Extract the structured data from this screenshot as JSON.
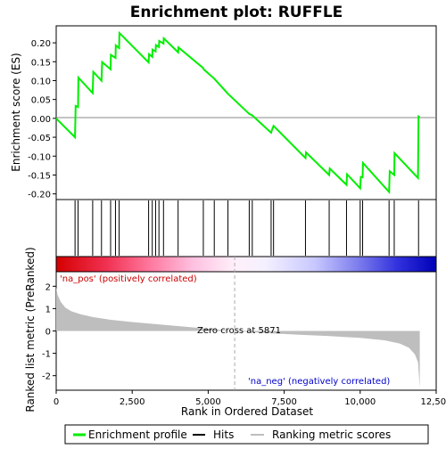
{
  "chart_data": {
    "type": "line",
    "title": "Enrichment plot: RUFFLE",
    "x_axis": {
      "label": "Rank in Ordered Dataset",
      "range": [
        0,
        12500
      ],
      "ticks": [
        0,
        2500,
        5000,
        7500,
        10000,
        12500
      ],
      "tick_labels": [
        "0",
        "2,500",
        "5,000",
        "7,500",
        "10,000",
        "12,500"
      ]
    },
    "es_panel": {
      "ylabel": "Enrichment score (ES)",
      "ylim": [
        -0.215,
        0.245
      ],
      "ticks": [
        -0.2,
        -0.15,
        -0.1,
        -0.05,
        0.0,
        0.05,
        0.1,
        0.15,
        0.2
      ],
      "tick_labels": [
        "-0.20",
        "-0.15",
        "-0.10",
        "-0.05",
        "0.00",
        "0.05",
        "0.10",
        "0.15",
        "0.20"
      ],
      "line_color": "#00ee00",
      "series_name": "Enrichment profile",
      "profile": [
        [
          0,
          0.0
        ],
        [
          620,
          -0.05
        ],
        [
          640,
          0.033
        ],
        [
          720,
          0.03
        ],
        [
          730,
          0.108
        ],
        [
          1200,
          0.067
        ],
        [
          1220,
          0.123
        ],
        [
          1490,
          0.1
        ],
        [
          1510,
          0.149
        ],
        [
          1790,
          0.13
        ],
        [
          1800,
          0.168
        ],
        [
          1950,
          0.16
        ],
        [
          1960,
          0.193
        ],
        [
          2070,
          0.186
        ],
        [
          2080,
          0.226
        ],
        [
          3040,
          0.148
        ],
        [
          3055,
          0.17
        ],
        [
          3160,
          0.163
        ],
        [
          3170,
          0.182
        ],
        [
          3270,
          0.177
        ],
        [
          3280,
          0.194
        ],
        [
          3380,
          0.189
        ],
        [
          3390,
          0.205
        ],
        [
          3530,
          0.198
        ],
        [
          3540,
          0.212
        ],
        [
          4010,
          0.175
        ],
        [
          4020,
          0.188
        ],
        [
          4840,
          0.133
        ],
        [
          4850,
          0.13
        ],
        [
          5200,
          0.105
        ],
        [
          5650,
          0.065
        ],
        [
          6350,
          0.012
        ],
        [
          6450,
          0.008
        ],
        [
          7070,
          -0.038
        ],
        [
          7100,
          -0.03
        ],
        [
          7150,
          -0.02
        ],
        [
          8200,
          -0.105
        ],
        [
          8220,
          -0.09
        ],
        [
          8980,
          -0.15
        ],
        [
          9000,
          -0.133
        ],
        [
          9550,
          -0.176
        ],
        [
          9570,
          -0.148
        ],
        [
          10000,
          -0.185
        ],
        [
          10020,
          -0.155
        ],
        [
          10080,
          -0.156
        ],
        [
          10090,
          -0.118
        ],
        [
          10950,
          -0.195
        ],
        [
          10970,
          -0.14
        ],
        [
          11120,
          -0.15
        ],
        [
          11130,
          -0.092
        ],
        [
          11900,
          -0.158
        ],
        [
          11920,
          0.005
        ],
        [
          11960,
          0.003
        ]
      ]
    },
    "hits": [
      620,
      720,
      1200,
      1490,
      1790,
      1950,
      2070,
      3040,
      3160,
      3270,
      3380,
      3530,
      4010,
      4840,
      5200,
      5650,
      6350,
      6450,
      7070,
      7150,
      8200,
      8980,
      9550,
      10000,
      10080,
      10950,
      11120,
      11920
    ],
    "color_bar": {
      "positive_label": "'na_pos' (positively correlated)",
      "negative_label": "'na_neg' (negatively correlated)",
      "positive_color": "#cc0000",
      "negative_color": "#0000cc"
    },
    "metric_panel": {
      "ylabel": "Ranked list metric (PreRanked)",
      "ylim": [
        -2.65,
        2.65
      ],
      "ticks": [
        -2,
        -1,
        0,
        1,
        2
      ],
      "tick_labels": [
        "-2",
        "-1",
        "0",
        "1",
        "2"
      ],
      "zero_cross_rank": 5871,
      "zero_cross_label": "Zero cross at 5871",
      "fill_color": "#bebebe",
      "metric_curve": [
        [
          0,
          1.95
        ],
        [
          50,
          1.6
        ],
        [
          150,
          1.3
        ],
        [
          300,
          1.05
        ],
        [
          500,
          0.88
        ],
        [
          800,
          0.75
        ],
        [
          1200,
          0.62
        ],
        [
          1800,
          0.5
        ],
        [
          2500,
          0.4
        ],
        [
          3500,
          0.28
        ],
        [
          4500,
          0.16
        ],
        [
          5500,
          0.04
        ],
        [
          5871,
          0.0
        ],
        [
          7000,
          -0.1
        ],
        [
          8000,
          -0.17
        ],
        [
          9000,
          -0.23
        ],
        [
          10000,
          -0.31
        ],
        [
          10800,
          -0.42
        ],
        [
          11300,
          -0.56
        ],
        [
          11600,
          -0.75
        ],
        [
          11800,
          -1.05
        ],
        [
          11900,
          -1.4
        ],
        [
          11960,
          -2.55
        ]
      ]
    },
    "legend": {
      "entries": [
        {
          "label": "Enrichment profile",
          "color": "#00ee00"
        },
        {
          "label": "Hits",
          "color": "#000000"
        },
        {
          "label": "Ranking metric scores",
          "color": "#bebebe"
        }
      ]
    }
  }
}
